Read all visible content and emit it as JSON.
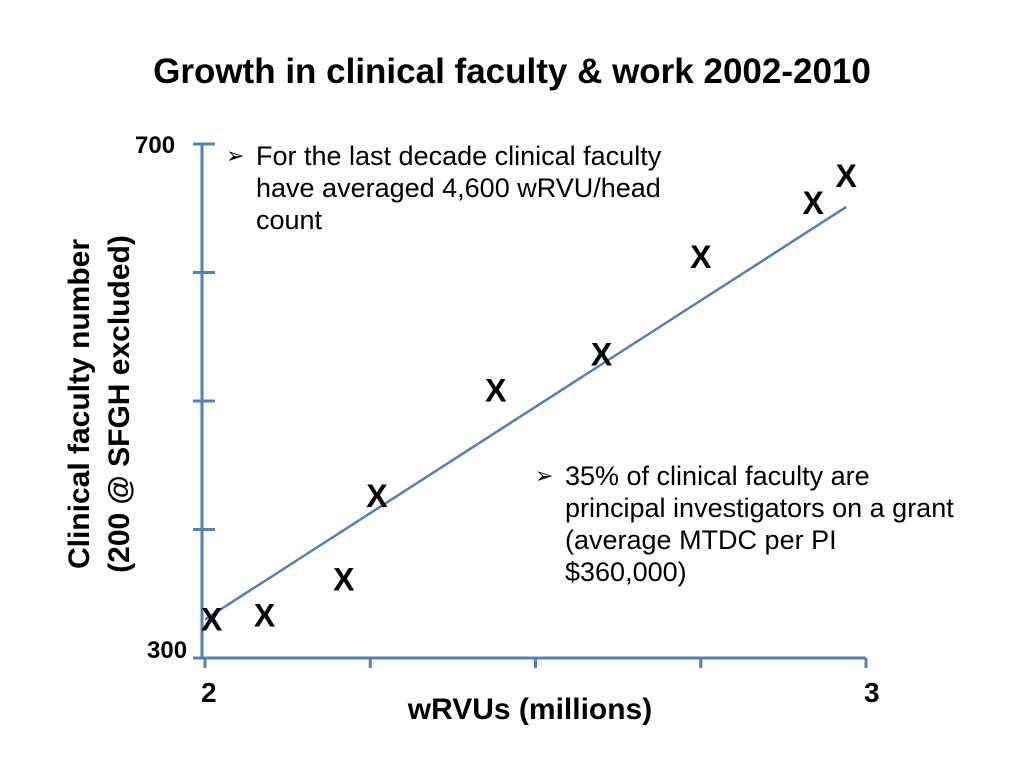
{
  "slide": {
    "title": "Growth in clinical faculty & work 2002-2010",
    "bullets": [
      {
        "icon": "arrow-bullet-icon",
        "text": "For the last decade clinical faculty have averaged 4,600 wRVU/head count"
      },
      {
        "icon": "arrow-bullet-icon",
        "text": "35% of clinical faculty are principal investigators on a grant (average MTDC per PI $360,000)"
      }
    ]
  },
  "chart_data": {
    "type": "scatter",
    "title": "Growth in clinical faculty & work 2002-2010",
    "xlabel": "wRVUs (millions)",
    "ylabel_line1": "Clinical faculty number",
    "ylabel_line2": "(200 @ SFGH excluded)",
    "xlim": [
      2,
      3
    ],
    "ylim": [
      300,
      700
    ],
    "x_tick_labels": [
      "2",
      "3"
    ],
    "y_tick_labels": [
      "300",
      "700"
    ],
    "x_ticks": [
      2.0,
      2.25,
      2.5,
      2.75,
      3.0
    ],
    "y_ticks": [
      300,
      400,
      500,
      600,
      700
    ],
    "marker": "X",
    "points": [
      {
        "x": 2.01,
        "y": 330
      },
      {
        "x": 2.09,
        "y": 333
      },
      {
        "x": 2.21,
        "y": 361
      },
      {
        "x": 2.26,
        "y": 426
      },
      {
        "x": 2.44,
        "y": 508
      },
      {
        "x": 2.6,
        "y": 536
      },
      {
        "x": 2.75,
        "y": 612
      },
      {
        "x": 2.92,
        "y": 654
      },
      {
        "x": 2.97,
        "y": 675
      }
    ],
    "trend_line": {
      "x": [
        2.0,
        2.97
      ],
      "y": [
        330,
        651
      ]
    },
    "colors": {
      "axis": "#4f81bd",
      "trend": "#4f81bd",
      "marker": "#000000"
    },
    "grid": false,
    "legend": "none"
  }
}
